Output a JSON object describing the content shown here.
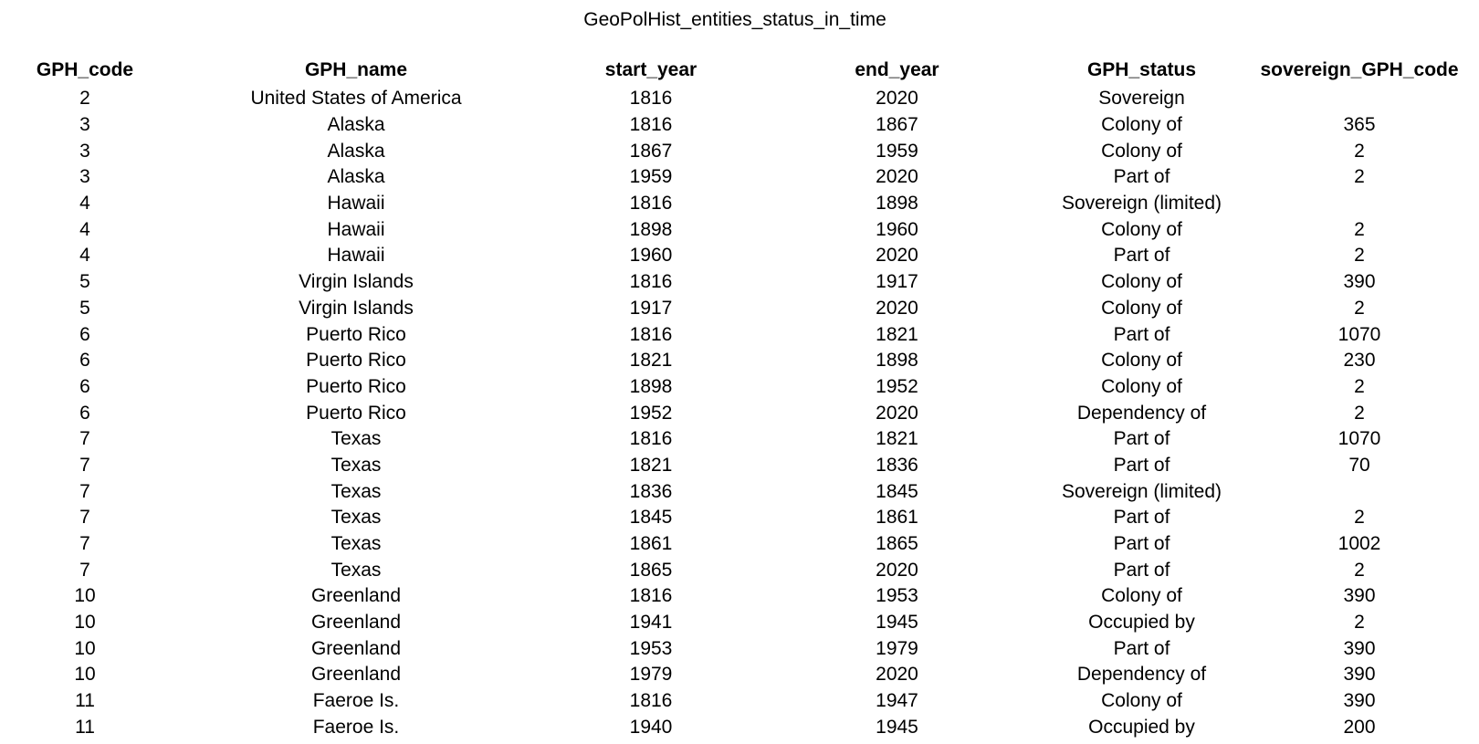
{
  "title": "GeoPolHist_entities_status_in_time",
  "columns": [
    "GPH_code",
    "GPH_name",
    "start_year",
    "end_year",
    "GPH_status",
    "sovereign_GPH_code"
  ],
  "rows": [
    [
      "2",
      "United States of America",
      "1816",
      "2020",
      "Sovereign",
      ""
    ],
    [
      "3",
      "Alaska",
      "1816",
      "1867",
      "Colony of",
      "365"
    ],
    [
      "3",
      "Alaska",
      "1867",
      "1959",
      "Colony of",
      "2"
    ],
    [
      "3",
      "Alaska",
      "1959",
      "2020",
      "Part of",
      "2"
    ],
    [
      "4",
      "Hawaii",
      "1816",
      "1898",
      "Sovereign (limited)",
      ""
    ],
    [
      "4",
      "Hawaii",
      "1898",
      "1960",
      "Colony of",
      "2"
    ],
    [
      "4",
      "Hawaii",
      "1960",
      "2020",
      "Part of",
      "2"
    ],
    [
      "5",
      "Virgin Islands",
      "1816",
      "1917",
      "Colony of",
      "390"
    ],
    [
      "5",
      "Virgin Islands",
      "1917",
      "2020",
      "Colony of",
      "2"
    ],
    [
      "6",
      "Puerto Rico",
      "1816",
      "1821",
      "Part of",
      "1070"
    ],
    [
      "6",
      "Puerto Rico",
      "1821",
      "1898",
      "Colony of",
      "230"
    ],
    [
      "6",
      "Puerto Rico",
      "1898",
      "1952",
      "Colony of",
      "2"
    ],
    [
      "6",
      "Puerto Rico",
      "1952",
      "2020",
      "Dependency of",
      "2"
    ],
    [
      "7",
      "Texas",
      "1816",
      "1821",
      "Part of",
      "1070"
    ],
    [
      "7",
      "Texas",
      "1821",
      "1836",
      "Part of",
      "70"
    ],
    [
      "7",
      "Texas",
      "1836",
      "1845",
      "Sovereign (limited)",
      ""
    ],
    [
      "7",
      "Texas",
      "1845",
      "1861",
      "Part of",
      "2"
    ],
    [
      "7",
      "Texas",
      "1861",
      "1865",
      "Part of",
      "1002"
    ],
    [
      "7",
      "Texas",
      "1865",
      "2020",
      "Part of",
      "2"
    ],
    [
      "10",
      "Greenland",
      "1816",
      "1953",
      "Colony of",
      "390"
    ],
    [
      "10",
      "Greenland",
      "1941",
      "1945",
      "Occupied by",
      "2"
    ],
    [
      "10",
      "Greenland",
      "1953",
      "1979",
      "Part of",
      "390"
    ],
    [
      "10",
      "Greenland",
      "1979",
      "2020",
      "Dependency of",
      "390"
    ],
    [
      "11",
      "Faeroe Is.",
      "1816",
      "1947",
      "Colony of",
      "390"
    ],
    [
      "11",
      "Faeroe Is.",
      "1940",
      "1945",
      "Occupied by",
      "200"
    ]
  ]
}
